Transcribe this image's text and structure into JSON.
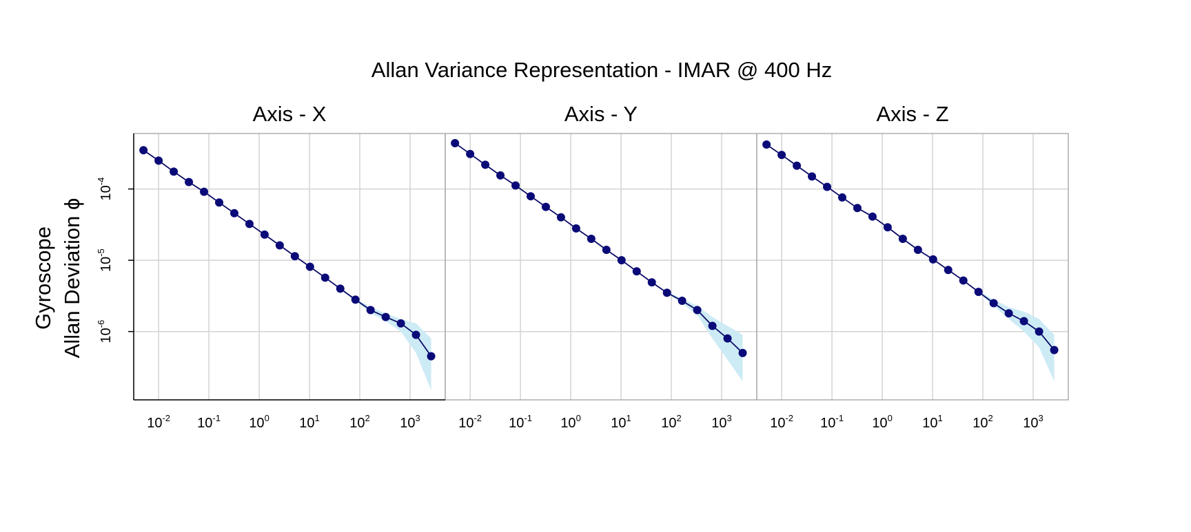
{
  "chart_data": {
    "type": "line",
    "title": "Allan Variance Representation - IMAR @ 400 Hz",
    "ylabel_lines": [
      "Gyroscope",
      "Allan Deviation ϕ"
    ],
    "x_scale": "log",
    "y_scale": "log",
    "x_ticks": [
      0.01,
      0.1,
      1,
      10,
      100,
      1000
    ],
    "x_tick_labels": [
      {
        "base": "10",
        "exp": "-2"
      },
      {
        "base": "10",
        "exp": "-1"
      },
      {
        "base": "10",
        "exp": "0"
      },
      {
        "base": "10",
        "exp": "1"
      },
      {
        "base": "10",
        "exp": "2"
      },
      {
        "base": "10",
        "exp": "3"
      }
    ],
    "y_ticks": [
      1e-06,
      1e-05,
      0.0001
    ],
    "y_tick_labels": [
      {
        "base": "10",
        "exp": "-6"
      },
      {
        "base": "10",
        "exp": "-5"
      },
      {
        "base": "10",
        "exp": "-4"
      }
    ],
    "xlim": [
      0.0032,
      5000
    ],
    "ylim": [
      1.1e-07,
      0.0006
    ],
    "grid": true,
    "colors": {
      "line": "#0a0a66",
      "point": "#0a0a78",
      "band": "#cdebf5",
      "grid": "#d3d3d3",
      "frame": "#999999"
    },
    "tau": [
      0.005,
      0.01,
      0.02,
      0.04,
      0.08,
      0.16,
      0.32,
      0.64,
      1.28,
      2.56,
      5.12,
      10.24,
      20.48,
      40.96,
      81.92,
      163.84,
      327.68,
      655.36,
      1310.72,
      2621.44
    ],
    "panels": [
      {
        "title": "Axis - X",
        "values": [
          0.00035,
          0.00025,
          0.000175,
          0.000125,
          9.13e-05,
          6.46e-05,
          4.57e-05,
          3.23e-05,
          2.29e-05,
          1.62e-05,
          1.14e-05,
          8.1e-06,
          5.7e-06,
          4e-06,
          2.8e-06,
          2e-06,
          1.6e-06,
          1.3e-06,
          9e-07,
          4.5e-07
        ],
        "band_lower": [
          0.00035,
          0.00025,
          0.000175,
          0.000125,
          9.13e-05,
          6.46e-05,
          4.57e-05,
          3.23e-05,
          2.29e-05,
          1.62e-05,
          1.14e-05,
          8.1e-06,
          5.7e-06,
          3.9e-06,
          2.7e-06,
          1.8e-06,
          1.4e-06,
          1e-06,
          5e-07,
          1.5e-07
        ],
        "band_upper": [
          0.00035,
          0.00025,
          0.000175,
          0.000125,
          9.13e-05,
          6.46e-05,
          4.57e-05,
          3.23e-05,
          2.29e-05,
          1.62e-05,
          1.14e-05,
          8.1e-06,
          5.7e-06,
          4.1e-06,
          2.9e-06,
          2.2e-06,
          1.8e-06,
          1.5e-06,
          1.3e-06,
          8e-07
        ]
      },
      {
        "title": "Axis - Y",
        "values": [
          0.00044,
          0.00031,
          0.000219,
          0.000155,
          0.000112,
          7.9e-05,
          5.6e-05,
          4e-05,
          2.8e-05,
          2e-05,
          1.4e-05,
          1e-05,
          7e-06,
          4.9e-06,
          3.5e-06,
          2.7e-06,
          2e-06,
          1.2e-06,
          8e-07,
          5e-07
        ],
        "band_lower": [
          0.00044,
          0.00031,
          0.000219,
          0.000155,
          0.000112,
          7.9e-05,
          5.6e-05,
          4e-05,
          2.8e-05,
          2e-05,
          1.4e-05,
          1e-05,
          7e-06,
          4.8e-06,
          3.4e-06,
          2.5e-06,
          1.7e-06,
          8e-07,
          4e-07,
          2e-07
        ],
        "band_upper": [
          0.00044,
          0.00031,
          0.000219,
          0.000155,
          0.000112,
          7.9e-05,
          5.6e-05,
          4e-05,
          2.8e-05,
          2e-05,
          1.4e-05,
          1e-05,
          7e-06,
          5e-06,
          3.6e-06,
          2.9e-06,
          2.3e-06,
          1.6e-06,
          1.2e-06,
          9e-07
        ]
      },
      {
        "title": "Axis - Z",
        "values": [
          0.00042,
          0.0003,
          0.000212,
          0.00015,
          0.000107,
          7.6e-05,
          5.4e-05,
          4.1e-05,
          2.9e-05,
          2e-05,
          1.4e-05,
          1.03e-05,
          7.3e-06,
          5.2e-06,
          3.6e-06,
          2.5e-06,
          1.8e-06,
          1.4e-06,
          1e-06,
          5.5e-07
        ],
        "band_lower": [
          0.00042,
          0.0003,
          0.000212,
          0.00015,
          0.000107,
          7.6e-05,
          5.4e-05,
          4.1e-05,
          2.9e-05,
          2e-05,
          1.4e-05,
          1.03e-05,
          7.3e-06,
          5.2e-06,
          3.5e-06,
          2.3e-06,
          1.5e-06,
          1e-06,
          6e-07,
          2e-07
        ],
        "band_upper": [
          0.00042,
          0.0003,
          0.000212,
          0.00015,
          0.000107,
          7.6e-05,
          5.4e-05,
          4.1e-05,
          2.9e-05,
          2e-05,
          1.4e-05,
          1.03e-05,
          7.3e-06,
          5.2e-06,
          3.7e-06,
          2.8e-06,
          2.2e-06,
          1.9e-06,
          1.5e-06,
          9e-07
        ]
      }
    ]
  }
}
